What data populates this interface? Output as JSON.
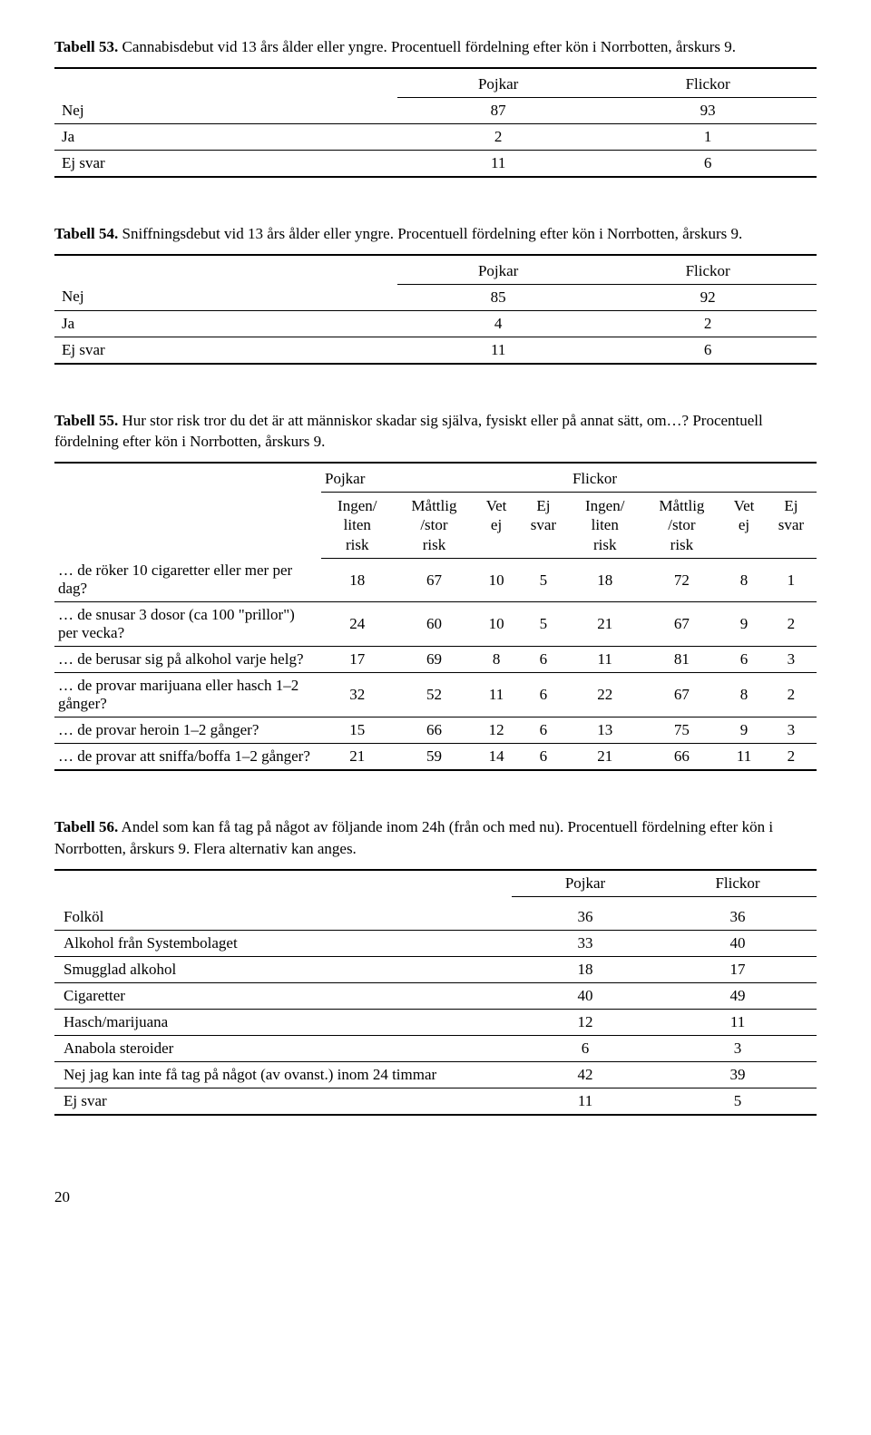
{
  "tables": {
    "t53": {
      "number": "Tabell 53.",
      "caption": "Cannabisdebut vid 13 års ålder eller yngre. Procentuell fördelning efter kön i Norrbotten, årskurs 9.",
      "columns": [
        "",
        "Pojkar",
        "Flickor"
      ],
      "rows": [
        [
          "Nej",
          "87",
          "93"
        ],
        [
          "Ja",
          "2",
          "1"
        ],
        [
          "Ej svar",
          "11",
          "6"
        ]
      ]
    },
    "t54": {
      "number": "Tabell 54.",
      "caption": "Sniffningsdebut vid 13 års ålder eller yngre. Procentuell fördelning efter kön i Norrbotten, årskurs 9.",
      "columns": [
        "",
        "Pojkar",
        "Flickor"
      ],
      "rows": [
        [
          "Nej",
          "85",
          "92"
        ],
        [
          "Ja",
          "4",
          "2"
        ],
        [
          "Ej svar",
          "11",
          "6"
        ]
      ]
    },
    "t55": {
      "number": "Tabell 55.",
      "caption": "Hur stor risk tror du det är att människor skadar sig själva, fysiskt eller på annat sätt, om…? Procentuell fördelning efter kön i Norrbotten, årskurs 9.",
      "groupHeaders": [
        "",
        "Pojkar",
        "Flickor"
      ],
      "subHeaders": [
        "",
        "Ingen/\nliten\nrisk",
        "Måttlig\n/stor\nrisk",
        "Vet\nej",
        "Ej\nsvar",
        "Ingen/\nliten\nrisk",
        "Måttlig\n/stor\nrisk",
        "Vet\nej",
        "Ej\nsvar"
      ],
      "rows": [
        [
          "… de röker 10 cigaretter eller mer per dag?",
          "18",
          "67",
          "10",
          "5",
          "18",
          "72",
          "8",
          "1"
        ],
        [
          "… de snusar 3 dosor (ca 100 \"prillor\") per vecka?",
          "24",
          "60",
          "10",
          "5",
          "21",
          "67",
          "9",
          "2"
        ],
        [
          "… de berusar sig på alkohol varje helg?",
          "17",
          "69",
          "8",
          "6",
          "11",
          "81",
          "6",
          "3"
        ],
        [
          "… de provar marijuana eller hasch 1–2 gånger?",
          "32",
          "52",
          "11",
          "6",
          "22",
          "67",
          "8",
          "2"
        ],
        [
          "… de provar heroin 1–2 gånger?",
          "15",
          "66",
          "12",
          "6",
          "13",
          "75",
          "9",
          "3"
        ],
        [
          "… de provar att sniffa/boffa 1–2 gånger?",
          "21",
          "59",
          "14",
          "6",
          "21",
          "66",
          "11",
          "2"
        ]
      ]
    },
    "t56": {
      "number": "Tabell 56.",
      "caption": "Andel som kan få tag på något av följande inom 24h (från och med nu). Procentuell fördelning efter kön i Norrbotten, årskurs 9. Flera alternativ kan anges.",
      "columns": [
        "",
        "Pojkar",
        "Flickor"
      ],
      "rows": [
        [
          "Folköl",
          "36",
          "36"
        ],
        [
          "Alkohol från Systembolaget",
          "33",
          "40"
        ],
        [
          "Smugglad alkohol",
          "18",
          "17"
        ],
        [
          "Cigaretter",
          "40",
          "49"
        ],
        [
          "Hasch/marijuana",
          "12",
          "11"
        ],
        [
          "Anabola steroider",
          "6",
          "3"
        ],
        [
          "Nej jag kan inte få tag på något (av ovanst.) inom 24 timmar",
          "42",
          "39"
        ],
        [
          "Ej svar",
          "11",
          "5"
        ]
      ]
    }
  },
  "pageNumber": "20"
}
